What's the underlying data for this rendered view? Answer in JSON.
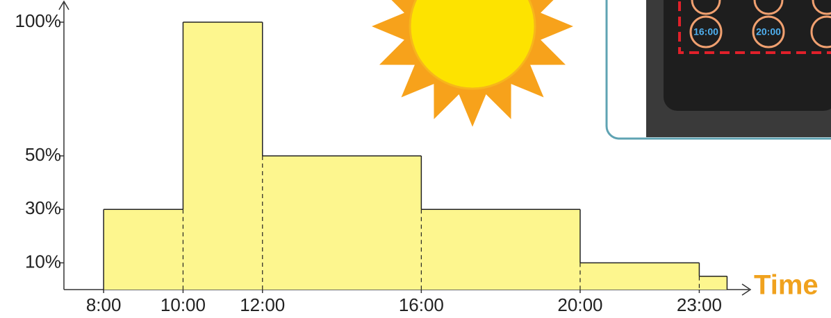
{
  "chart_data": {
    "type": "histogram",
    "bins": [
      8,
      10,
      12,
      16,
      20,
      23,
      23.7
    ],
    "values": [
      30,
      100,
      50,
      30,
      10,
      5
    ],
    "color": "#fdf68e",
    "x_label": "Time",
    "xlim": [
      7,
      24.2
    ],
    "xticks": [
      {
        "value": 8,
        "label": "8:00"
      },
      {
        "value": 10,
        "label": "10:00"
      },
      {
        "value": 12,
        "label": "12:00"
      },
      {
        "value": 16,
        "label": "16:00"
      },
      {
        "value": 20,
        "label": "20:00"
      },
      {
        "value": 23,
        "label": "23:00"
      }
    ],
    "ylim": [
      0,
      100
    ],
    "yticks": [
      {
        "value": 10,
        "label": "10%"
      },
      {
        "value": 30,
        "label": "30%"
      },
      {
        "value": 50,
        "label": "50%"
      },
      {
        "value": 100,
        "label": "100%"
      }
    ]
  },
  "device": {
    "buttons": [
      "16:00",
      "20:00"
    ]
  }
}
